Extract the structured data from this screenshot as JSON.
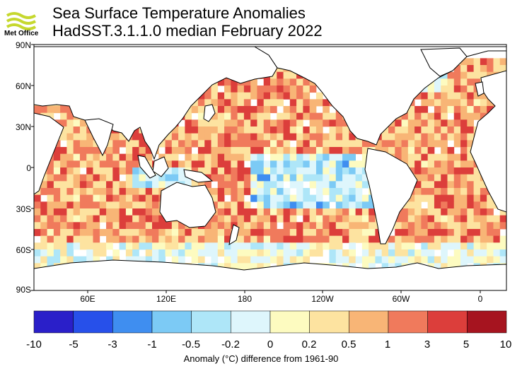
{
  "header": {
    "logo_text": "Met Office",
    "title": "Sea Surface Temperature Anomalies",
    "subtitle": "HadSST.3.1.1.0 median February 2022"
  },
  "map": {
    "lat_ticks": [
      "90N",
      "60N",
      "30N",
      "0",
      "30S",
      "60S",
      "90S"
    ],
    "lon_ticks": [
      "60E",
      "120E",
      "180",
      "120W",
      "60W",
      "0"
    ],
    "ocean_color": "#ffffff",
    "land_outline_color": "#000000"
  },
  "colorbar": {
    "title": "Anomaly (°C) difference from 1961-90",
    "ticks": [
      "-10",
      "-5",
      "-3",
      "-1",
      "-0.5",
      "-0.2",
      "0",
      "0.2",
      "0.5",
      "1",
      "3",
      "5",
      "10"
    ],
    "colors": [
      "#2a1fc9",
      "#2750ea",
      "#3f8ef0",
      "#7ccaf5",
      "#aee6f8",
      "#def6fc",
      "#fdfbc0",
      "#fde3a0",
      "#f8b576",
      "#f07a5c",
      "#dc3e3b",
      "#a6141f"
    ]
  }
}
